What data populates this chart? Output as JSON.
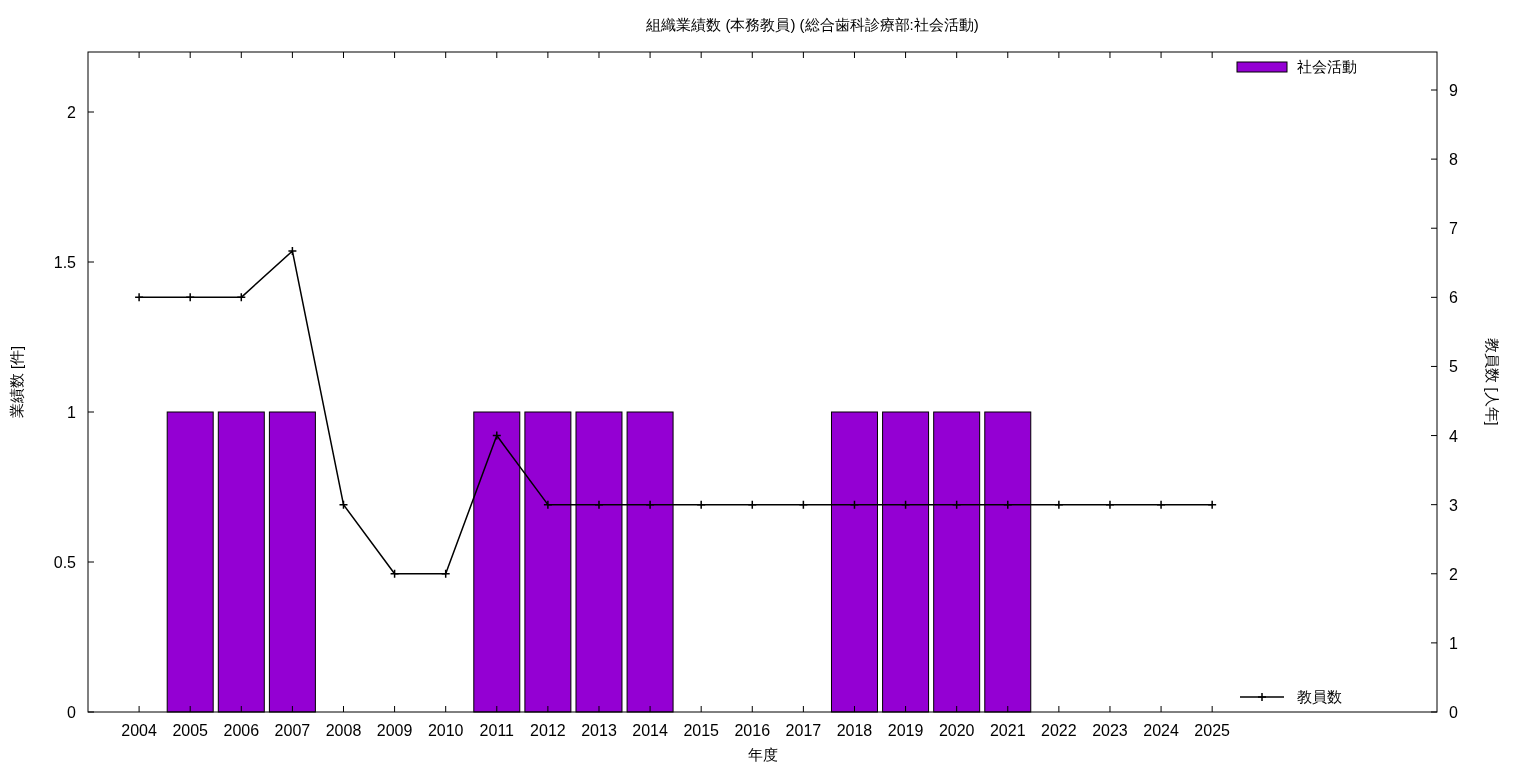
{
  "chart_data": {
    "type": "bar",
    "title": "組織業績数 (本務教員) (総合歯科診療部:社会活動)",
    "xlabel": "年度",
    "ylabel": "業績数 [件]",
    "y2label": "教員数 [人年]",
    "x": [
      2004,
      2005,
      2006,
      2007,
      2008,
      2009,
      2010,
      2011,
      2012,
      2013,
      2014,
      2015,
      2016,
      2017,
      2018,
      2019,
      2020,
      2021,
      2022,
      2023,
      2024,
      2025
    ],
    "xlim": [
      2003,
      2029.4
    ],
    "xticks": [
      2004,
      2005,
      2006,
      2007,
      2008,
      2009,
      2010,
      2011,
      2012,
      2013,
      2014,
      2015,
      2016,
      2017,
      2018,
      2019,
      2020,
      2021,
      2022,
      2023,
      2024,
      2025
    ],
    "ylim": [
      0,
      2.2
    ],
    "yticks": [
      0,
      0.5,
      1,
      1.5,
      2
    ],
    "y2lim": [
      0,
      9.55
    ],
    "y2ticks": [
      0,
      1,
      2,
      3,
      4,
      5,
      6,
      7,
      8,
      9
    ],
    "legend": "right",
    "grid": false,
    "series": [
      {
        "name": "社会活動",
        "color": "#9400d3",
        "values": [
          0,
          1,
          1,
          1,
          0,
          0,
          0,
          1,
          1,
          1,
          1,
          0,
          0,
          0,
          1,
          1,
          1,
          1,
          0,
          0,
          0,
          0
        ]
      },
      {
        "name": "教員数",
        "type": "line",
        "axis": "y2",
        "color": "#000000",
        "marker": "cross",
        "line_style": "solid",
        "values": [
          6,
          6,
          6,
          6.67,
          3,
          2,
          2,
          4,
          3,
          3,
          3,
          3,
          3,
          3,
          3,
          3,
          3,
          3,
          3,
          3,
          3,
          3
        ]
      }
    ]
  }
}
